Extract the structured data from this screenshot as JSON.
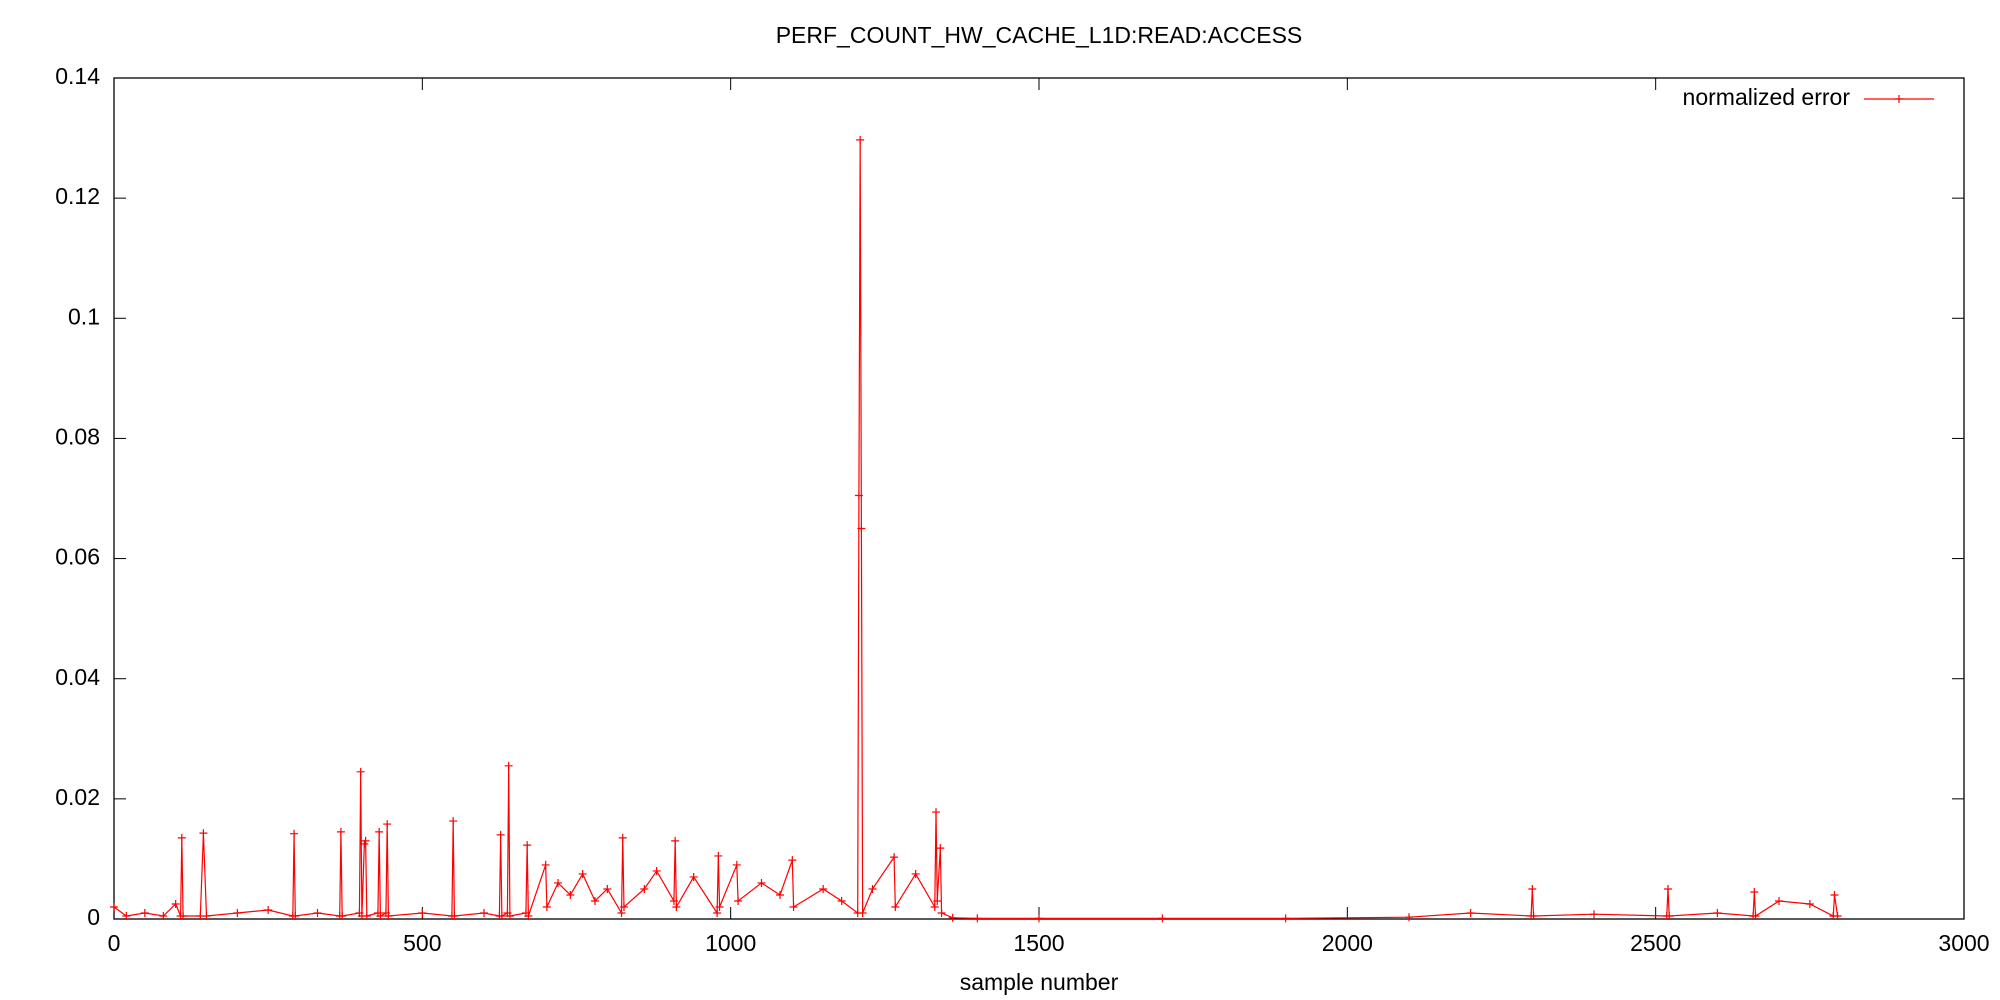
{
  "chart_data": {
    "type": "line",
    "title": "PERF_COUNT_HW_CACHE_L1D:READ:ACCESS",
    "x_label": "sample number",
    "x": [
      0,
      20,
      50,
      80,
      100,
      108,
      110,
      112,
      140,
      145,
      150,
      200,
      250,
      290,
      292,
      294,
      330,
      366,
      368,
      370,
      398,
      400,
      402,
      406,
      408,
      410,
      428,
      430,
      432,
      441,
      443,
      445,
      500,
      548,
      550,
      552,
      600,
      625,
      627,
      629,
      638,
      640,
      642,
      668,
      670,
      672,
      700,
      702,
      720,
      740,
      760,
      780,
      800,
      823,
      825,
      827,
      860,
      880,
      908,
      910,
      912,
      940,
      978,
      980,
      982,
      1010,
      1012,
      1050,
      1080,
      1100,
      1102,
      1150,
      1180,
      1206,
      1208,
      1210,
      1212,
      1214,
      1230,
      1265,
      1267,
      1300,
      1331,
      1333,
      1335,
      1340,
      1342,
      1360,
      1400,
      1500,
      1700,
      1900,
      2100,
      2200,
      2298,
      2300,
      2302,
      2400,
      2518,
      2520,
      2522,
      2600,
      2658,
      2660,
      2662,
      2700,
      2750,
      2788,
      2790,
      2795
    ],
    "series": [
      {
        "name": "normalized error",
        "color": "#ff0000",
        "values": [
          0.002,
          0.0005,
          0.001,
          0.0005,
          0.0025,
          0.0005,
          0.0135,
          0.0005,
          0.0005,
          0.0143,
          0.0005,
          0.001,
          0.0015,
          0.0005,
          0.0142,
          0.0005,
          0.001,
          0.0005,
          0.0145,
          0.0005,
          0.001,
          0.0245,
          0.0005,
          0.0125,
          0.013,
          0.0005,
          0.001,
          0.0145,
          0.0005,
          0.001,
          0.0158,
          0.0005,
          0.001,
          0.0005,
          0.0163,
          0.0005,
          0.001,
          0.0005,
          0.014,
          0.0005,
          0.001,
          0.0255,
          0.0005,
          0.001,
          0.0123,
          0.0005,
          0.009,
          0.002,
          0.006,
          0.004,
          0.0075,
          0.003,
          0.005,
          0.001,
          0.0135,
          0.002,
          0.005,
          0.008,
          0.003,
          0.013,
          0.002,
          0.007,
          0.001,
          0.0105,
          0.002,
          0.009,
          0.003,
          0.006,
          0.004,
          0.0098,
          0.002,
          0.005,
          0.003,
          0.001,
          0.0705,
          0.1297,
          0.065,
          0.001,
          0.005,
          0.0103,
          0.002,
          0.0075,
          0.002,
          0.0178,
          0.003,
          0.0118,
          0.001,
          0.0002,
          0.0001,
          0.0001,
          0.0001,
          0.0001,
          0.0003,
          0.001,
          0.0005,
          0.005,
          0.0005,
          0.0008,
          0.0005,
          0.005,
          0.0005,
          0.001,
          0.0005,
          0.0045,
          0.0005,
          0.003,
          0.0025,
          0.0005,
          0.004,
          0.0005
        ]
      }
    ],
    "xlim": [
      0,
      3000
    ],
    "xticks": [
      0,
      500,
      1000,
      1500,
      2000,
      2500,
      3000
    ],
    "ylim": [
      0,
      0.14
    ],
    "yticks": [
      0,
      0.02,
      0.04,
      0.06,
      0.08,
      0.1,
      0.12,
      0.14
    ],
    "legend": "top-right",
    "grid": false
  }
}
